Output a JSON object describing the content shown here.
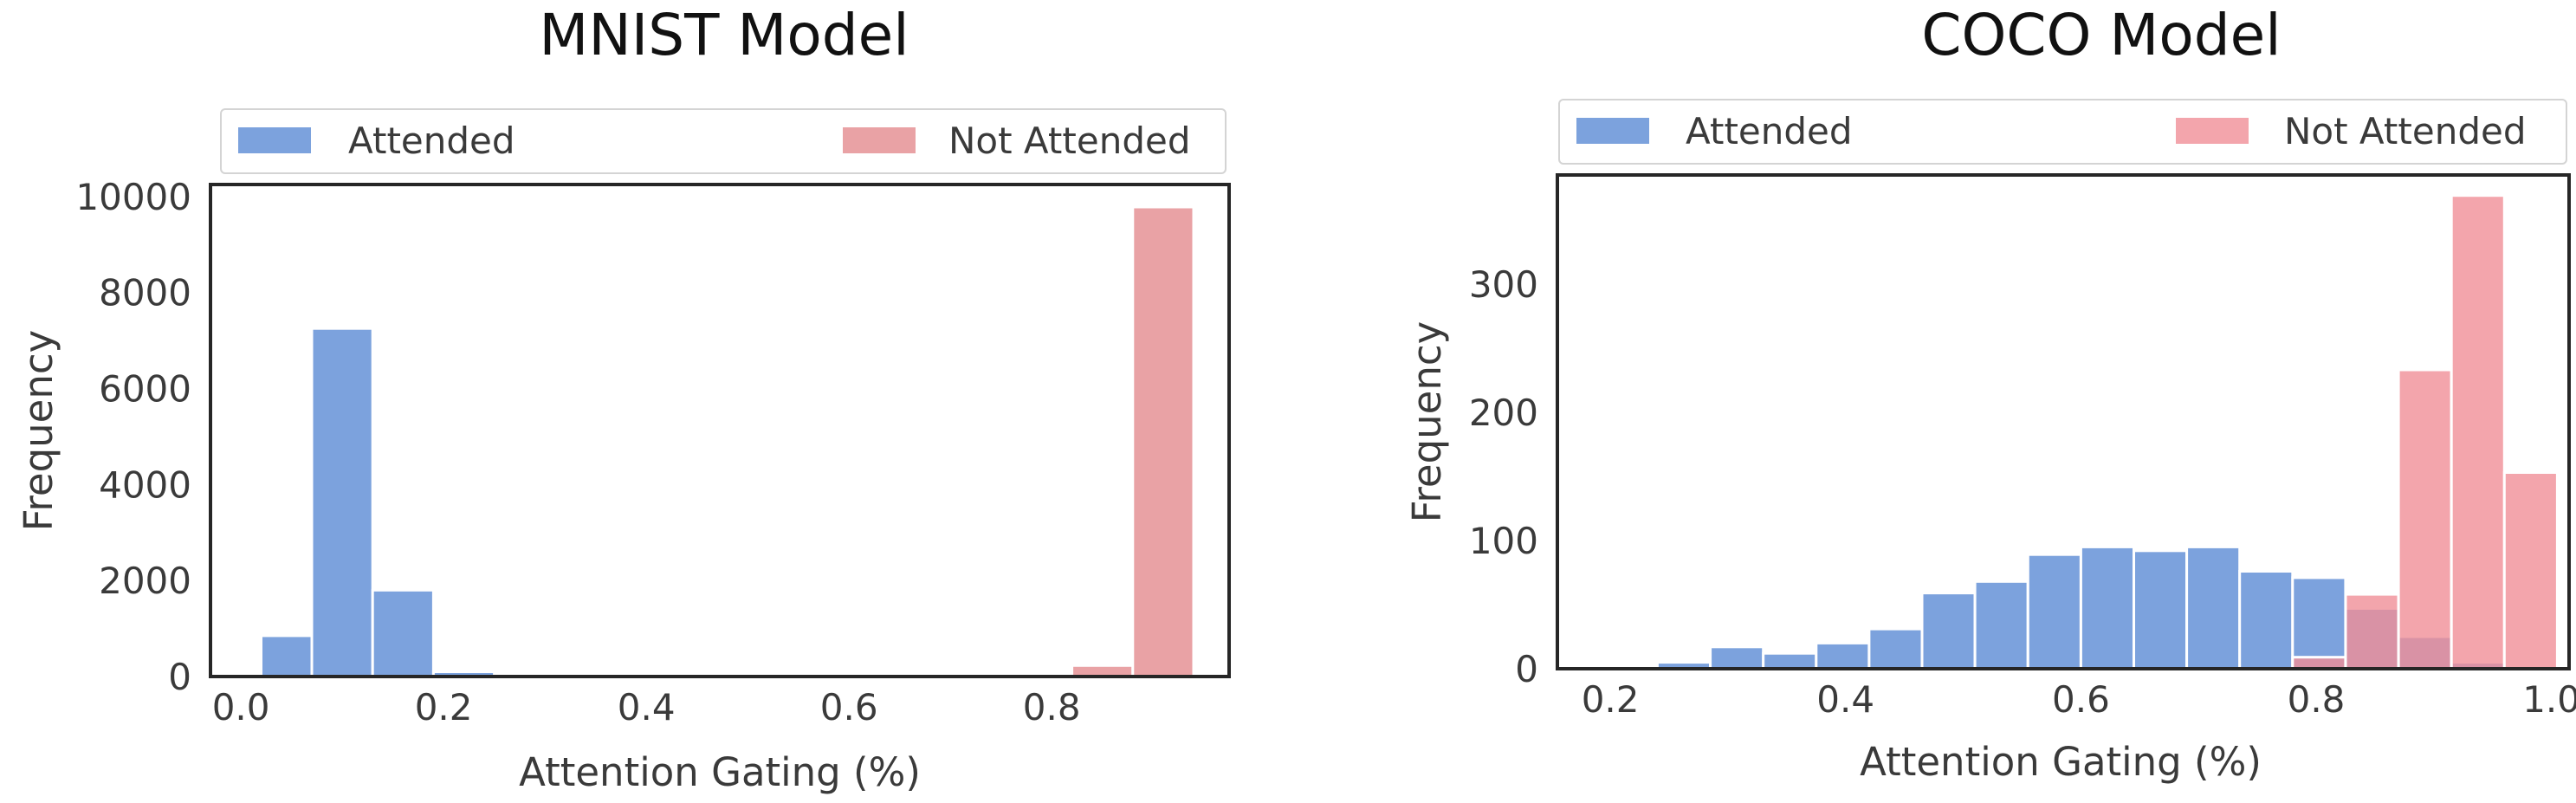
{
  "chart_data": [
    {
      "type": "bar",
      "title": "MNIST Model",
      "xlabel": "Attention Gating (%)",
      "ylabel": "Frequency",
      "xlim": [
        -0.03,
        0.975
      ],
      "ylim": [
        0,
        10250
      ],
      "xticks": [
        0.0,
        0.2,
        0.4,
        0.6,
        0.8
      ],
      "xtick_labels": [
        "0.0",
        "0.2",
        "0.4",
        "0.6",
        "0.8"
      ],
      "yticks": [
        0,
        2000,
        4000,
        6000,
        8000,
        10000
      ],
      "ytick_labels": [
        "0",
        "2000",
        "4000",
        "6000",
        "8000",
        "10000"
      ],
      "grid": false,
      "legend": "top",
      "series": [
        {
          "name": "Attended",
          "color": "#5b8bd4",
          "bins": [
            {
              "x0": 0.02,
              "x1": 0.07,
              "value": 850
            },
            {
              "x0": 0.07,
              "x1": 0.13,
              "value": 7250
            },
            {
              "x0": 0.13,
              "x1": 0.19,
              "value": 1800
            },
            {
              "x0": 0.19,
              "x1": 0.25,
              "value": 100
            }
          ]
        },
        {
          "name": "Not Attended",
          "color": "#e38b8f",
          "bins": [
            {
              "x0": 0.82,
              "x1": 0.88,
              "value": 230
            },
            {
              "x0": 0.88,
              "x1": 0.94,
              "value": 9780
            }
          ]
        }
      ]
    },
    {
      "type": "bar",
      "title": "COCO Model",
      "xlabel": "Attention Gating (%)",
      "ylabel": "Frequency",
      "xlim": [
        0.155,
        1.015
      ],
      "ylim": [
        0,
        385
      ],
      "xticks": [
        0.2,
        0.4,
        0.6,
        0.8,
        1.0
      ],
      "xtick_labels": [
        "0.2",
        "0.4",
        "0.6",
        "0.8",
        "1.0"
      ],
      "yticks": [
        0,
        100,
        200,
        300
      ],
      "ytick_labels": [
        "0",
        "100",
        "200",
        "300"
      ],
      "grid": false,
      "legend": "top",
      "series": [
        {
          "name": "Attended",
          "color": "#5b8bd4",
          "bins": [
            {
              "x0": 0.24,
              "x1": 0.285,
              "value": 5
            },
            {
              "x0": 0.285,
              "x1": 0.33,
              "value": 17
            },
            {
              "x0": 0.33,
              "x1": 0.375,
              "value": 12
            },
            {
              "x0": 0.375,
              "x1": 0.42,
              "value": 20
            },
            {
              "x0": 0.42,
              "x1": 0.465,
              "value": 31
            },
            {
              "x0": 0.465,
              "x1": 0.51,
              "value": 59
            },
            {
              "x0": 0.51,
              "x1": 0.555,
              "value": 68
            },
            {
              "x0": 0.555,
              "x1": 0.6,
              "value": 89
            },
            {
              "x0": 0.6,
              "x1": 0.645,
              "value": 95
            },
            {
              "x0": 0.645,
              "x1": 0.69,
              "value": 92
            },
            {
              "x0": 0.69,
              "x1": 0.735,
              "value": 95
            },
            {
              "x0": 0.735,
              "x1": 0.78,
              "value": 76
            },
            {
              "x0": 0.78,
              "x1": 0.825,
              "value": 71
            },
            {
              "x0": 0.825,
              "x1": 0.87,
              "value": 47
            },
            {
              "x0": 0.87,
              "x1": 0.915,
              "value": 25
            },
            {
              "x0": 0.915,
              "x1": 0.96,
              "value": 5
            }
          ]
        },
        {
          "name": "Not Attended",
          "color": "#f08f97",
          "bins": [
            {
              "x0": 0.78,
              "x1": 0.825,
              "value": 9
            },
            {
              "x0": 0.825,
              "x1": 0.87,
              "value": 58
            },
            {
              "x0": 0.87,
              "x1": 0.915,
              "value": 233
            },
            {
              "x0": 0.915,
              "x1": 0.96,
              "value": 369
            },
            {
              "x0": 0.96,
              "x1": 1.005,
              "value": 153
            }
          ]
        }
      ]
    }
  ]
}
